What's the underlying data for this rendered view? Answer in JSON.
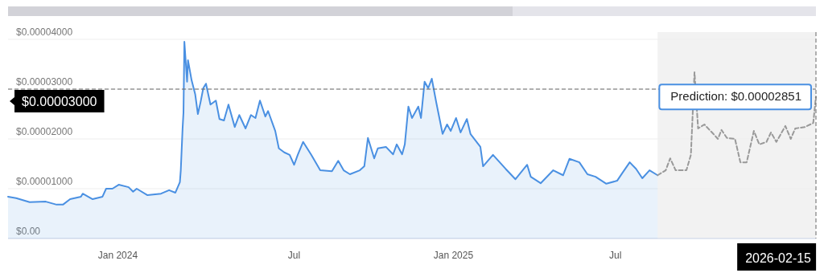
{
  "chart_data": {
    "type": "area",
    "xlim": [
      "2023-09-01",
      "2026-02-15"
    ],
    "xticks": [
      {
        "value": "2024-01-01",
        "label": "Jan 2024"
      },
      {
        "value": "2024-07-15",
        "label": "Jul"
      },
      {
        "value": "2025-01-08",
        "label": "Jan 2025"
      },
      {
        "value": "2025-07-07",
        "label": "Jul"
      }
    ],
    "ylim": [
      0,
      4e-05
    ],
    "yticks": [
      {
        "value": 0,
        "label": "$0.00"
      },
      {
        "value": 1e-05,
        "label": "$0.00001000"
      },
      {
        "value": 2e-05,
        "label": "$0.00002000"
      },
      {
        "value": 3e-05,
        "label": "$0.00003000"
      },
      {
        "value": 4e-05,
        "label": "$0.00004000"
      }
    ],
    "grid": "y",
    "series": [
      {
        "type": "area",
        "color": "#4a90e2",
        "x": [
          "2023-09-01",
          "2023-09-10",
          "2023-09-25",
          "2023-10-13",
          "2023-10-25",
          "2023-11-01",
          "2023-11-09",
          "2023-11-21",
          "2023-11-23",
          "2023-12-04",
          "2023-12-15",
          "2023-12-19",
          "2023-12-26",
          "2024-01-02",
          "2024-01-13",
          "2024-01-18",
          "2024-01-22",
          "2024-02-03",
          "2024-02-18",
          "2024-02-27",
          "2024-03-05",
          "2024-03-10",
          "2024-03-11",
          "2024-03-13",
          "2024-03-14",
          "2024-03-15",
          "2024-03-18",
          "2024-03-19",
          "2024-03-23",
          "2024-03-27",
          "2024-03-30",
          "2024-04-02",
          "2024-04-05",
          "2024-04-08",
          "2024-04-13",
          "2024-04-19",
          "2024-04-23",
          "2024-04-28",
          "2024-05-03",
          "2024-05-10",
          "2024-05-15",
          "2024-05-22",
          "2024-05-28",
          "2024-06-02",
          "2024-06-07",
          "2024-06-13",
          "2024-06-16",
          "2024-06-24",
          "2024-06-28",
          "2024-07-04",
          "2024-07-10",
          "2024-07-15",
          "2024-07-19",
          "2024-07-25",
          "2024-08-03",
          "2024-08-13",
          "2024-08-26",
          "2024-09-02",
          "2024-09-08",
          "2024-09-15",
          "2024-09-26",
          "2024-10-01",
          "2024-10-05",
          "2024-10-12",
          "2024-10-16",
          "2024-10-25",
          "2024-11-02",
          "2024-11-06",
          "2024-11-12",
          "2024-11-15",
          "2024-11-19",
          "2024-11-23",
          "2024-11-30",
          "2024-12-03",
          "2024-12-07",
          "2024-12-11",
          "2024-12-15",
          "2024-12-20",
          "2024-12-27",
          "2025-01-01",
          "2025-01-05",
          "2025-01-11",
          "2025-01-16",
          "2025-01-23",
          "2025-01-27",
          "2025-02-07",
          "2025-02-10",
          "2025-02-21",
          "2025-03-07",
          "2025-03-18",
          "2025-03-31",
          "2025-04-04",
          "2025-04-15",
          "2025-04-29",
          "2025-05-10",
          "2025-05-17",
          "2025-05-28",
          "2025-06-06",
          "2025-06-15",
          "2025-06-27",
          "2025-07-09",
          "2025-07-15",
          "2025-07-23",
          "2025-07-30",
          "2025-08-06",
          "2025-08-14",
          "2025-08-23"
        ],
        "values": [
          8.4e-06,
          8.1e-06,
          7.3e-06,
          7.4e-06,
          6.8e-06,
          6.8e-06,
          7.9e-06,
          8.4e-06,
          9e-06,
          7.9e-06,
          8.4e-06,
          1e-05,
          1e-05,
          1.08e-05,
          1.03e-05,
          9.4e-06,
          1e-05,
          8.7e-06,
          9e-06,
          9.7e-06,
          9.2e-06,
          1.13e-05,
          1.37e-05,
          2.21e-05,
          2.53e-05,
          3.95e-05,
          3.15e-05,
          3.58e-05,
          3.18e-05,
          2.9e-05,
          2.5e-05,
          2.74e-05,
          3.02e-05,
          3.11e-05,
          2.69e-05,
          2.77e-05,
          2.4e-05,
          2.37e-05,
          2.69e-05,
          2.24e-05,
          2.48e-05,
          2.21e-05,
          2.48e-05,
          2.42e-05,
          2.77e-05,
          2.45e-05,
          2.56e-05,
          2.16e-05,
          1.81e-05,
          1.73e-05,
          1.68e-05,
          1.48e-05,
          1.68e-05,
          1.94e-05,
          1.68e-05,
          1.37e-05,
          1.35e-05,
          1.56e-05,
          1.37e-05,
          1.29e-05,
          1.37e-05,
          1.45e-05,
          2.02e-05,
          1.61e-05,
          1.81e-05,
          1.84e-05,
          1.69e-05,
          1.89e-05,
          1.69e-05,
          1.89e-05,
          2.65e-05,
          2.42e-05,
          2.65e-05,
          2.42e-05,
          3.15e-05,
          3.02e-05,
          3.21e-05,
          2.73e-05,
          2.1e-05,
          2.29e-05,
          2.16e-05,
          2.42e-05,
          2.13e-05,
          2.4e-05,
          2.1e-05,
          1.84e-05,
          1.45e-05,
          1.68e-05,
          1.4e-05,
          1.19e-05,
          1.48e-05,
          1.24e-05,
          1.11e-05,
          1.37e-05,
          1.27e-05,
          1.6e-05,
          1.53e-05,
          1.29e-05,
          1.24e-05,
          1.1e-05,
          1.16e-05,
          1.32e-05,
          1.53e-05,
          1.4e-05,
          1.21e-05,
          1.37e-05,
          1.27e-05
        ]
      },
      {
        "type": "line",
        "line_style": "dashed",
        "color": "#999999",
        "x": [
          "2025-08-23",
          "2025-09-01",
          "2025-09-06",
          "2025-09-12",
          "2025-09-24",
          "2025-09-29",
          "2025-10-03",
          "2025-10-07",
          "2025-10-14",
          "2025-10-24",
          "2025-10-29",
          "2025-11-02",
          "2025-11-08",
          "2025-11-17",
          "2025-11-23",
          "2025-11-30",
          "2025-12-08",
          "2025-12-14",
          "2025-12-22",
          "2025-12-27",
          "2026-01-02",
          "2026-01-12",
          "2026-01-18",
          "2026-01-23",
          "2026-02-03",
          "2026-02-12",
          "2026-02-15"
        ],
        "values": [
          1.27e-05,
          1.37e-05,
          1.61e-05,
          1.37e-05,
          1.37e-05,
          1.68e-05,
          3.34e-05,
          2.21e-05,
          2.29e-05,
          2.1e-05,
          2e-05,
          2.18e-05,
          2.02e-05,
          2e-05,
          1.53e-05,
          1.53e-05,
          2.16e-05,
          1.89e-05,
          1.94e-05,
          2.13e-05,
          1.94e-05,
          2.26e-05,
          2e-05,
          2.21e-05,
          2.24e-05,
          2.32e-05,
          2.851e-05
        ]
      }
    ],
    "bands": [
      {
        "axis": "x",
        "from": "2025-08-23",
        "to": "2026-02-15",
        "color": "#f2f2f2"
      }
    ],
    "ref_lines": [
      {
        "axis": "y",
        "value": 3e-05,
        "label": "$0.00003000",
        "line_style": "dashed"
      },
      {
        "axis": "x",
        "value": "2026-02-15",
        "label": "2026-02-15",
        "line_style": "dashed"
      }
    ],
    "annotations": [
      {
        "text": "Prediction: $0.00002851",
        "x": "2026-02-15",
        "y": 2.851e-05
      }
    ]
  }
}
